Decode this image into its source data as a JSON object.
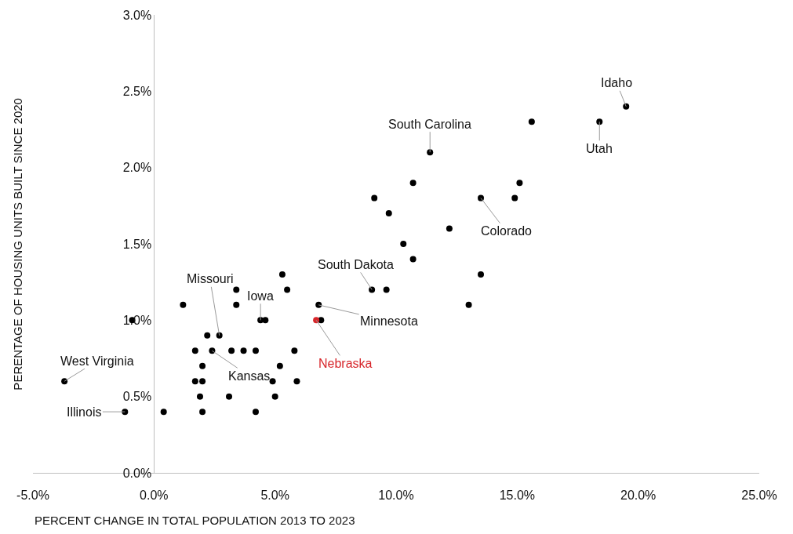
{
  "chart_data": {
    "type": "scatter",
    "xlabel": "PERCENT CHANGE IN TOTAL POPULATION 2013 TO 2023",
    "ylabel": "PERENTAGE OF HOUSING UNITS BUILT SINCE 2020",
    "marker": "circle",
    "xlim": [
      -5,
      25
    ],
    "ylim": [
      0,
      3
    ],
    "xticks": [
      {
        "value": -5,
        "label": "-5.0%"
      },
      {
        "value": 0,
        "label": "0.0%"
      },
      {
        "value": 5,
        "label": "5.0%"
      },
      {
        "value": 10,
        "label": "10.0%"
      },
      {
        "value": 15,
        "label": "15.0%"
      },
      {
        "value": 20,
        "label": "20.0%"
      },
      {
        "value": 25,
        "label": "25.0%"
      }
    ],
    "yticks": [
      {
        "value": 0,
        "label": "0.0%"
      },
      {
        "value": 0.5,
        "label": "0.5%"
      },
      {
        "value": 1,
        "label": "1.0%"
      },
      {
        "value": 1.5,
        "label": "1.5%"
      },
      {
        "value": 2,
        "label": "2.0%"
      },
      {
        "value": 2.5,
        "label": "2.5%"
      },
      {
        "value": 3,
        "label": "3.0%"
      }
    ],
    "series": [
      {
        "color": "#000000",
        "x": [
          19.5,
          15.6,
          18.4,
          11.4,
          10.7,
          15.1,
          9.1,
          13.5,
          14.9,
          9.7,
          12.2,
          10.3,
          10.7,
          13.5,
          9.0,
          9.6,
          13.0,
          6.8,
          6.9,
          5.3,
          5.5,
          3.4,
          1.2,
          3.4,
          -0.9,
          4.4,
          4.6,
          2.2,
          2.7,
          1.7,
          2.4,
          3.2,
          3.7,
          4.2,
          5.8,
          2.0,
          5.2,
          1.7,
          2.0,
          4.9,
          5.9,
          -3.7,
          1.9,
          3.1,
          5.0,
          -1.2,
          0.4,
          2.0,
          4.2
        ],
        "values": [
          2.4,
          2.3,
          2.3,
          2.1,
          1.9,
          1.9,
          1.8,
          1.8,
          1.8,
          1.7,
          1.6,
          1.5,
          1.4,
          1.3,
          1.2,
          1.2,
          1.1,
          1.1,
          1.0,
          1.3,
          1.2,
          1.2,
          1.1,
          1.1,
          1.0,
          1.0,
          1.0,
          0.9,
          0.9,
          0.8,
          0.8,
          0.8,
          0.8,
          0.8,
          0.8,
          0.7,
          0.7,
          0.6,
          0.6,
          0.6,
          0.6,
          0.6,
          0.5,
          0.5,
          0.5,
          0.4,
          0.4,
          0.4,
          0.4
        ]
      },
      {
        "name": "Nebraska",
        "color": "#d7262b",
        "x": [
          6.7
        ],
        "values": [
          1.0
        ]
      }
    ],
    "annotations": [
      {
        "text": "Idaho",
        "x": 19.5,
        "y": 2.4
      },
      {
        "text": "Utah",
        "x": 18.4,
        "y": 2.3
      },
      {
        "text": "South Carolina",
        "x": 11.4,
        "y": 2.1
      },
      {
        "text": "Colorado",
        "x": 13.5,
        "y": 1.8
      },
      {
        "text": "South Dakota",
        "x": 9.0,
        "y": 1.2
      },
      {
        "text": "Minnesota",
        "x": 6.8,
        "y": 1.1
      },
      {
        "text": "Missouri",
        "x": 2.7,
        "y": 0.9
      },
      {
        "text": "Iowa",
        "x": 4.4,
        "y": 1.0
      },
      {
        "text": "Kansas",
        "x": 2.4,
        "y": 0.8
      },
      {
        "text": "West Virginia",
        "x": -3.7,
        "y": 0.6
      },
      {
        "text": "Illinois",
        "x": -1.2,
        "y": 0.4
      }
    ]
  }
}
